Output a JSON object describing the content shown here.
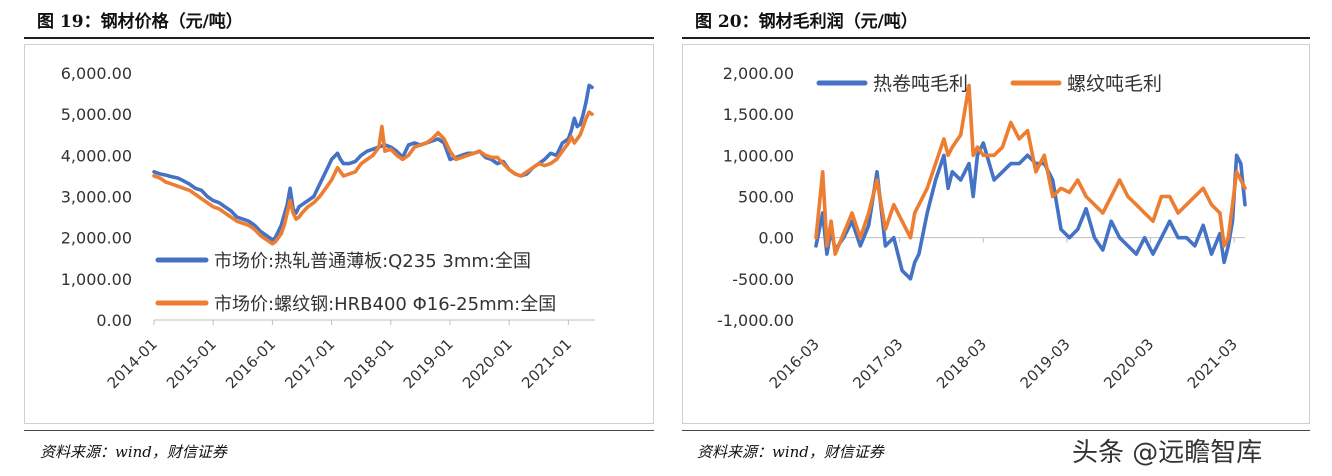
{
  "left": {
    "title": "图 19：钢材价格（元/吨）",
    "source": "资料来源：wind，财信证券"
  },
  "right": {
    "title": "图 20：钢材毛利润（元/吨）",
    "source": "资料来源：wind，财信证券"
  },
  "watermark": "头条 @远瞻智库",
  "colors": {
    "blue": "#4472C4",
    "orange": "#ED7D31"
  },
  "chart_data": [
    {
      "type": "line",
      "x_unit": "year",
      "ylim": [
        0,
        6000
      ],
      "yticks": [
        0,
        1000,
        2000,
        3000,
        4000,
        5000,
        6000
      ],
      "ytick_labels": [
        "0.00",
        "1,000.00",
        "2,000.00",
        "3,000.00",
        "4,000.00",
        "5,000.00",
        "6,000.00"
      ],
      "xlim": [
        2014.0,
        2021.45
      ],
      "xticks": [
        2014.0,
        2015.0,
        2016.0,
        2017.0,
        2018.0,
        2019.0,
        2020.0,
        2021.0
      ],
      "xtick_labels": [
        "2014-01",
        "2015-01",
        "2016-01",
        "2017-01",
        "2018-01",
        "2019-01",
        "2020-01",
        "2021-01"
      ],
      "legend_position": "lower-left",
      "series": [
        {
          "name": "市场价:热轧普通薄板:Q235 3mm:全国",
          "color": "#4472C4",
          "x": [
            2014.0,
            2014.1,
            2014.2,
            2014.3,
            2014.4,
            2014.5,
            2014.6,
            2014.7,
            2014.8,
            2014.9,
            2015.0,
            2015.1,
            2015.2,
            2015.3,
            2015.4,
            2015.5,
            2015.6,
            2015.7,
            2015.8,
            2015.9,
            2016.0,
            2016.05,
            2016.15,
            2016.2,
            2016.25,
            2016.3,
            2016.35,
            2016.4,
            2016.45,
            2016.5,
            2016.6,
            2016.7,
            2016.8,
            2016.9,
            2017.0,
            2017.1,
            2017.15,
            2017.2,
            2017.3,
            2017.4,
            2017.5,
            2017.6,
            2017.7,
            2017.8,
            2017.9,
            2018.0,
            2018.1,
            2018.2,
            2018.3,
            2018.4,
            2018.5,
            2018.6,
            2018.7,
            2018.8,
            2018.9,
            2019.0,
            2019.1,
            2019.2,
            2019.3,
            2019.4,
            2019.5,
            2019.6,
            2019.7,
            2019.8,
            2019.9,
            2020.0,
            2020.1,
            2020.2,
            2020.3,
            2020.4,
            2020.5,
            2020.6,
            2020.7,
            2020.8,
            2020.9,
            2021.0,
            2021.05,
            2021.1,
            2021.15,
            2021.2,
            2021.25,
            2021.3,
            2021.35,
            2021.4
          ],
          "y": [
            3600,
            3550,
            3520,
            3480,
            3450,
            3380,
            3300,
            3200,
            3150,
            3000,
            2900,
            2850,
            2750,
            2650,
            2500,
            2450,
            2400,
            2300,
            2150,
            2050,
            1950,
            2000,
            2300,
            2550,
            2800,
            3200,
            2700,
            2600,
            2750,
            2800,
            2900,
            3000,
            3300,
            3600,
            3900,
            4050,
            3900,
            3800,
            3800,
            3850,
            4000,
            4100,
            4150,
            4200,
            4250,
            4200,
            4100,
            3950,
            4250,
            4300,
            4250,
            4300,
            4350,
            4400,
            4300,
            3900,
            3950,
            4000,
            4050,
            4050,
            4100,
            3950,
            3900,
            3800,
            3850,
            3650,
            3550,
            3500,
            3550,
            3700,
            3800,
            3900,
            4050,
            4000,
            4300,
            4400,
            4600,
            4900,
            4700,
            4750,
            5000,
            5300,
            5700,
            5650
          ]
        },
        {
          "name": "市场价:螺纹钢:HRB400 Φ16-25mm:全国",
          "color": "#ED7D31",
          "x": [
            2014.0,
            2014.1,
            2014.2,
            2014.3,
            2014.4,
            2014.5,
            2014.6,
            2014.7,
            2014.8,
            2014.9,
            2015.0,
            2015.1,
            2015.2,
            2015.3,
            2015.4,
            2015.5,
            2015.6,
            2015.7,
            2015.8,
            2015.9,
            2016.0,
            2016.05,
            2016.15,
            2016.2,
            2016.25,
            2016.3,
            2016.35,
            2016.4,
            2016.45,
            2016.5,
            2016.6,
            2016.7,
            2016.8,
            2016.9,
            2017.0,
            2017.1,
            2017.15,
            2017.2,
            2017.3,
            2017.4,
            2017.5,
            2017.6,
            2017.7,
            2017.8,
            2017.85,
            2017.9,
            2018.0,
            2018.1,
            2018.2,
            2018.3,
            2018.4,
            2018.5,
            2018.6,
            2018.7,
            2018.8,
            2018.9,
            2019.0,
            2019.1,
            2019.2,
            2019.3,
            2019.4,
            2019.5,
            2019.6,
            2019.7,
            2019.8,
            2019.9,
            2020.0,
            2020.1,
            2020.2,
            2020.3,
            2020.4,
            2020.5,
            2020.6,
            2020.7,
            2020.8,
            2020.9,
            2021.0,
            2021.05,
            2021.1,
            2021.15,
            2021.2,
            2021.25,
            2021.3,
            2021.35,
            2021.4
          ],
          "y": [
            3500,
            3450,
            3350,
            3300,
            3250,
            3200,
            3150,
            3050,
            2950,
            2850,
            2750,
            2700,
            2600,
            2500,
            2400,
            2350,
            2300,
            2200,
            2050,
            1950,
            1850,
            1900,
            2100,
            2300,
            2600,
            2900,
            2600,
            2450,
            2500,
            2600,
            2750,
            2850,
            3000,
            3200,
            3400,
            3700,
            3600,
            3500,
            3550,
            3600,
            3800,
            3900,
            4000,
            4200,
            4700,
            4100,
            4150,
            4000,
            3900,
            4000,
            4200,
            4250,
            4300,
            4400,
            4550,
            4400,
            4100,
            3900,
            3950,
            4000,
            4050,
            4100,
            4000,
            3950,
            3950,
            3800,
            3650,
            3550,
            3500,
            3600,
            3700,
            3800,
            3750,
            3800,
            3900,
            4100,
            4300,
            4450,
            4300,
            4400,
            4500,
            4700,
            4900,
            5050,
            5000
          ]
        }
      ]
    },
    {
      "type": "line",
      "x_unit": "year",
      "ylim": [
        -1000,
        2000
      ],
      "yticks": [
        -1000,
        -500,
        0,
        500,
        1000,
        1500,
        2000
      ],
      "ytick_labels": [
        "-1,000.00",
        "-500.00",
        "0.00",
        "500.00",
        "1,000.00",
        "1,500.00",
        "2,000.00"
      ],
      "xlim": [
        2016.17,
        2021.3
      ],
      "xticks": [
        2016.17,
        2017.17,
        2018.17,
        2019.17,
        2020.17,
        2021.17
      ],
      "xtick_labels": [
        "2016-03",
        "2017-03",
        "2018-03",
        "2019-03",
        "2020-03",
        "2021-03"
      ],
      "legend_position": "top",
      "series": [
        {
          "name": "热卷吨毛利",
          "color": "#4472C4",
          "x": [
            2016.17,
            2016.25,
            2016.3,
            2016.35,
            2016.4,
            2016.5,
            2016.6,
            2016.7,
            2016.8,
            2016.9,
            2017.0,
            2017.1,
            2017.2,
            2017.3,
            2017.35,
            2017.4,
            2017.5,
            2017.6,
            2017.7,
            2017.75,
            2017.8,
            2017.9,
            2018.0,
            2018.05,
            2018.1,
            2018.17,
            2018.3,
            2018.4,
            2018.5,
            2018.6,
            2018.7,
            2018.8,
            2018.9,
            2019.0,
            2019.1,
            2019.2,
            2019.3,
            2019.4,
            2019.5,
            2019.6,
            2019.7,
            2019.8,
            2019.9,
            2020.0,
            2020.1,
            2020.2,
            2020.3,
            2020.4,
            2020.5,
            2020.6,
            2020.7,
            2020.8,
            2020.9,
            2021.0,
            2021.05,
            2021.1,
            2021.15,
            2021.2,
            2021.25,
            2021.3
          ],
          "y": [
            -100,
            300,
            -200,
            100,
            -150,
            0,
            200,
            -100,
            150,
            800,
            -100,
            0,
            -400,
            -500,
            -300,
            -200,
            300,
            700,
            1000,
            600,
            800,
            700,
            900,
            500,
            1000,
            1150,
            700,
            800,
            900,
            900,
            1000,
            900,
            900,
            700,
            100,
            0,
            100,
            350,
            0,
            -150,
            200,
            0,
            -100,
            -200,
            0,
            -200,
            0,
            200,
            0,
            0,
            -100,
            150,
            -200,
            50,
            -300,
            -100,
            200,
            1000,
            900,
            400
          ]
        },
        {
          "name": "螺纹吨毛利",
          "color": "#ED7D31",
          "x": [
            2016.17,
            2016.25,
            2016.3,
            2016.35,
            2016.4,
            2016.5,
            2016.6,
            2016.7,
            2016.8,
            2016.9,
            2017.0,
            2017.1,
            2017.2,
            2017.3,
            2017.35,
            2017.4,
            2017.5,
            2017.6,
            2017.7,
            2017.75,
            2017.8,
            2017.9,
            2018.0,
            2018.05,
            2018.1,
            2018.17,
            2018.3,
            2018.4,
            2018.5,
            2018.6,
            2018.7,
            2018.8,
            2018.9,
            2019.0,
            2019.1,
            2019.2,
            2019.3,
            2019.4,
            2019.5,
            2019.6,
            2019.7,
            2019.8,
            2019.9,
            2020.0,
            2020.1,
            2020.2,
            2020.3,
            2020.4,
            2020.5,
            2020.6,
            2020.7,
            2020.8,
            2020.9,
            2021.0,
            2021.05,
            2021.1,
            2021.15,
            2021.2,
            2021.25,
            2021.3
          ],
          "y": [
            0,
            800,
            -100,
            200,
            -200,
            50,
            300,
            0,
            300,
            700,
            100,
            400,
            200,
            0,
            300,
            400,
            600,
            900,
            1200,
            1000,
            1100,
            1250,
            1850,
            1000,
            1100,
            1000,
            1000,
            1100,
            1400,
            1200,
            1300,
            800,
            1000,
            500,
            600,
            550,
            700,
            500,
            400,
            300,
            500,
            700,
            500,
            400,
            300,
            200,
            500,
            500,
            300,
            400,
            500,
            600,
            400,
            300,
            -100,
            0,
            400,
            800,
            700,
            600
          ]
        }
      ]
    }
  ]
}
